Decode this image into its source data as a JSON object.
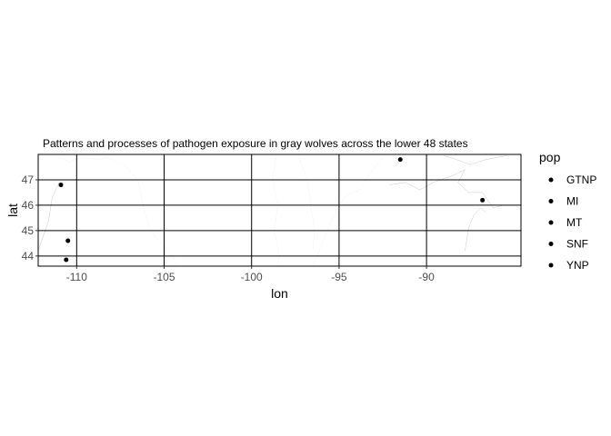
{
  "chart_data": {
    "type": "scatter",
    "title": "Patterns and processes of pathogen exposure in gray wolves across the lower 48 states",
    "xlabel": "lon",
    "ylabel": "lat",
    "xlim": [
      -112.2,
      -84.6
    ],
    "ylim": [
      43.6,
      48.0
    ],
    "x_ticks": [
      -110,
      -105,
      -100,
      -95,
      -90
    ],
    "y_ticks": [
      44,
      45,
      46,
      47
    ],
    "x_tick_labels": [
      "-110",
      "-105",
      "-100",
      "-95",
      "-90"
    ],
    "y_tick_labels": [
      "44",
      "45",
      "46",
      "47"
    ],
    "grid": true,
    "points": [
      {
        "x": -110.9,
        "y": 46.8
      },
      {
        "x": -110.5,
        "y": 44.6
      },
      {
        "x": -110.6,
        "y": 43.85
      },
      {
        "x": -91.5,
        "y": 47.8
      },
      {
        "x": -86.8,
        "y": 46.2
      }
    ],
    "point_color": "#000000",
    "legend": {
      "title": "pop",
      "placement": "right",
      "entries": [
        "GTNP",
        "MI",
        "MT",
        "SNF",
        "YNP"
      ]
    }
  }
}
